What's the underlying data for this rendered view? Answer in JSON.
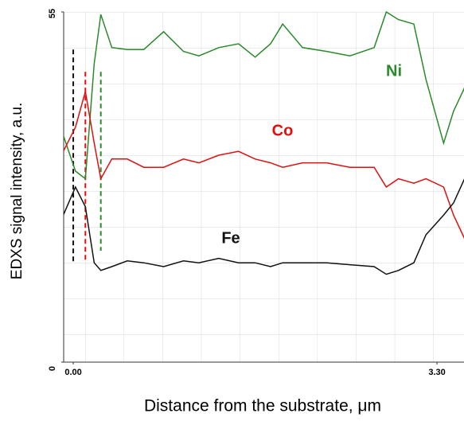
{
  "chart_data": {
    "type": "line",
    "y_label": "EDXS signal intensity,  a.u.",
    "x_label": "Distance from the substrate, μm",
    "xlim": [
      -0.087,
      3.545
    ],
    "ylim": [
      0,
      55
    ],
    "xticks": [
      {
        "value": 0,
        "label": "0.00"
      },
      {
        "value": 3.3,
        "label": "3.30"
      }
    ],
    "yticks": [
      0,
      55
    ],
    "grid": true,
    "x": [
      -0.09,
      0.02,
      0.11,
      0.19,
      0.25,
      0.35,
      0.49,
      0.64,
      0.82,
      1.0,
      1.14,
      1.32,
      1.5,
      1.65,
      1.79,
      1.9,
      2.08,
      2.3,
      2.51,
      2.73,
      2.84,
      2.95,
      3.09,
      3.2,
      3.36,
      3.45,
      3.55
    ],
    "series": [
      {
        "name": "Ni",
        "color": "#2a8a2a",
        "values": [
          35.6,
          30,
          28.8,
          46.9,
          54.6,
          49.4,
          49.1,
          49.1,
          51.9,
          48.8,
          48.1,
          49.4,
          50,
          47.9,
          50,
          53.1,
          49.4,
          48.8,
          48.1,
          49.4,
          55,
          53.8,
          53.1,
          44.4,
          34.4,
          39.4,
          43.1
        ]
      },
      {
        "name": "Co",
        "color": "#e01010",
        "values": [
          33.1,
          36.9,
          42.5,
          34.4,
          28.8,
          31.9,
          31.9,
          30.6,
          30.6,
          31.9,
          31.3,
          32.5,
          33.1,
          31.9,
          31.3,
          30.6,
          31.3,
          31.3,
          30.6,
          30.6,
          27.5,
          28.8,
          28.1,
          28.8,
          27.5,
          23.1,
          19.4
        ]
      },
      {
        "name": "Fe",
        "color": "#111111",
        "values": [
          23.1,
          27.5,
          24.4,
          15.6,
          14.4,
          15,
          15.9,
          15.6,
          15,
          15.9,
          15.6,
          16.3,
          15.6,
          15.6,
          15,
          15.6,
          15.6,
          15.6,
          15.3,
          15,
          13.8,
          14.4,
          15.6,
          20,
          23.1,
          25,
          28.8
        ]
      }
    ],
    "vlines": [
      {
        "x": 0.0,
        "color": "#111111",
        "y": [
          49.1,
          15.6
        ]
      },
      {
        "x": 0.11,
        "color": "#e01010",
        "y": [
          45.6,
          15.6
        ]
      },
      {
        "x": 0.25,
        "color": "#2a8a2a",
        "y": [
          45.6,
          17.5
        ]
      }
    ]
  }
}
